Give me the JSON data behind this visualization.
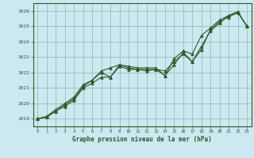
{
  "title": "Graphe pression niveau de la mer (hPa)",
  "background_color": "#cce8f0",
  "plot_bg_color": "#cce8f0",
  "grid_color": "#88bbaa",
  "line_color": "#2d5a2d",
  "border_color": "#2d5a2d",
  "xlim": [
    -0.5,
    23.5
  ],
  "ylim": [
    1018.5,
    1026.5
  ],
  "yticks": [
    1019,
    1020,
    1021,
    1022,
    1023,
    1024,
    1025,
    1026
  ],
  "xticks": [
    0,
    1,
    2,
    3,
    4,
    5,
    6,
    7,
    8,
    9,
    10,
    11,
    12,
    13,
    14,
    15,
    16,
    17,
    18,
    19,
    20,
    21,
    22,
    23
  ],
  "series": [
    [
      1019.0,
      1019.1,
      1019.5,
      1019.8,
      1020.2,
      1021.0,
      1021.3,
      1021.7,
      1021.7,
      1022.5,
      1022.3,
      1022.2,
      1022.2,
      1022.2,
      1021.8,
      1022.5,
      1023.3,
      1022.7,
      1023.5,
      1024.8,
      1025.3,
      1025.6,
      1025.9,
      1025.0
    ],
    [
      1019.0,
      1019.1,
      1019.5,
      1019.9,
      1020.3,
      1021.1,
      1021.5,
      1022.0,
      1021.7,
      1022.4,
      1022.2,
      1022.2,
      1022.1,
      1022.2,
      1022.1,
      1022.7,
      1023.2,
      1022.7,
      1023.7,
      1024.7,
      1025.2,
      1025.7,
      1025.95,
      1025.0
    ],
    [
      1019.0,
      1019.15,
      1019.6,
      1020.0,
      1020.4,
      1021.2,
      1021.5,
      1022.1,
      1022.3,
      1022.5,
      1022.4,
      1022.3,
      1022.3,
      1022.3,
      1021.8,
      1022.9,
      1023.4,
      1023.2,
      1024.4,
      1024.9,
      1025.4,
      1025.7,
      1025.9,
      1025.0
    ]
  ]
}
